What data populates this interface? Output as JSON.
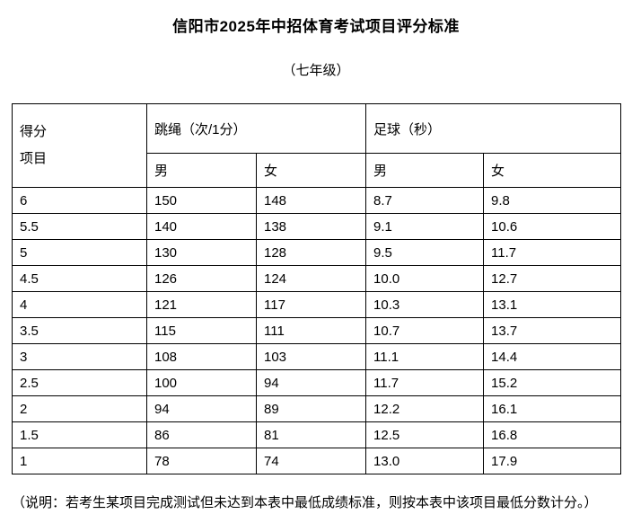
{
  "page": {
    "title": "信阳市2025年中招体育考试项目评分标准",
    "subtitle": "（七年级）",
    "note": "（说明：若考生某项目完成测试但未达到本表中最低成绩标准，则按本表中该项目最低分数计分。）"
  },
  "table": {
    "corner_header_line1": "得分",
    "corner_header_line2": "项目",
    "group_headers": [
      "跳绳（次/1分）",
      "足球（秒）"
    ],
    "sub_headers": [
      "男",
      "女",
      "男",
      "女"
    ],
    "rows": [
      {
        "score": "6",
        "values": [
          "150",
          "148",
          "8.7",
          "9.8"
        ]
      },
      {
        "score": "5.5",
        "values": [
          "140",
          "138",
          "9.1",
          "10.6"
        ]
      },
      {
        "score": "5",
        "values": [
          "130",
          "128",
          "9.5",
          "11.7"
        ]
      },
      {
        "score": "4.5",
        "values": [
          "126",
          "124",
          "10.0",
          "12.7"
        ]
      },
      {
        "score": "4",
        "values": [
          "121",
          "117",
          "10.3",
          "13.1"
        ]
      },
      {
        "score": "3.5",
        "values": [
          "115",
          "111",
          "10.7",
          "13.7"
        ]
      },
      {
        "score": "3",
        "values": [
          "108",
          "103",
          "11.1",
          "14.4"
        ]
      },
      {
        "score": "2.5",
        "values": [
          "100",
          "94",
          "11.7",
          "15.2"
        ]
      },
      {
        "score": "2",
        "values": [
          "94",
          "89",
          "12.2",
          "16.1"
        ]
      },
      {
        "score": "1.5",
        "values": [
          "86",
          "81",
          "12.5",
          "16.8"
        ]
      },
      {
        "score": "1",
        "values": [
          "78",
          "74",
          "13.0",
          "17.9"
        ]
      }
    ]
  }
}
